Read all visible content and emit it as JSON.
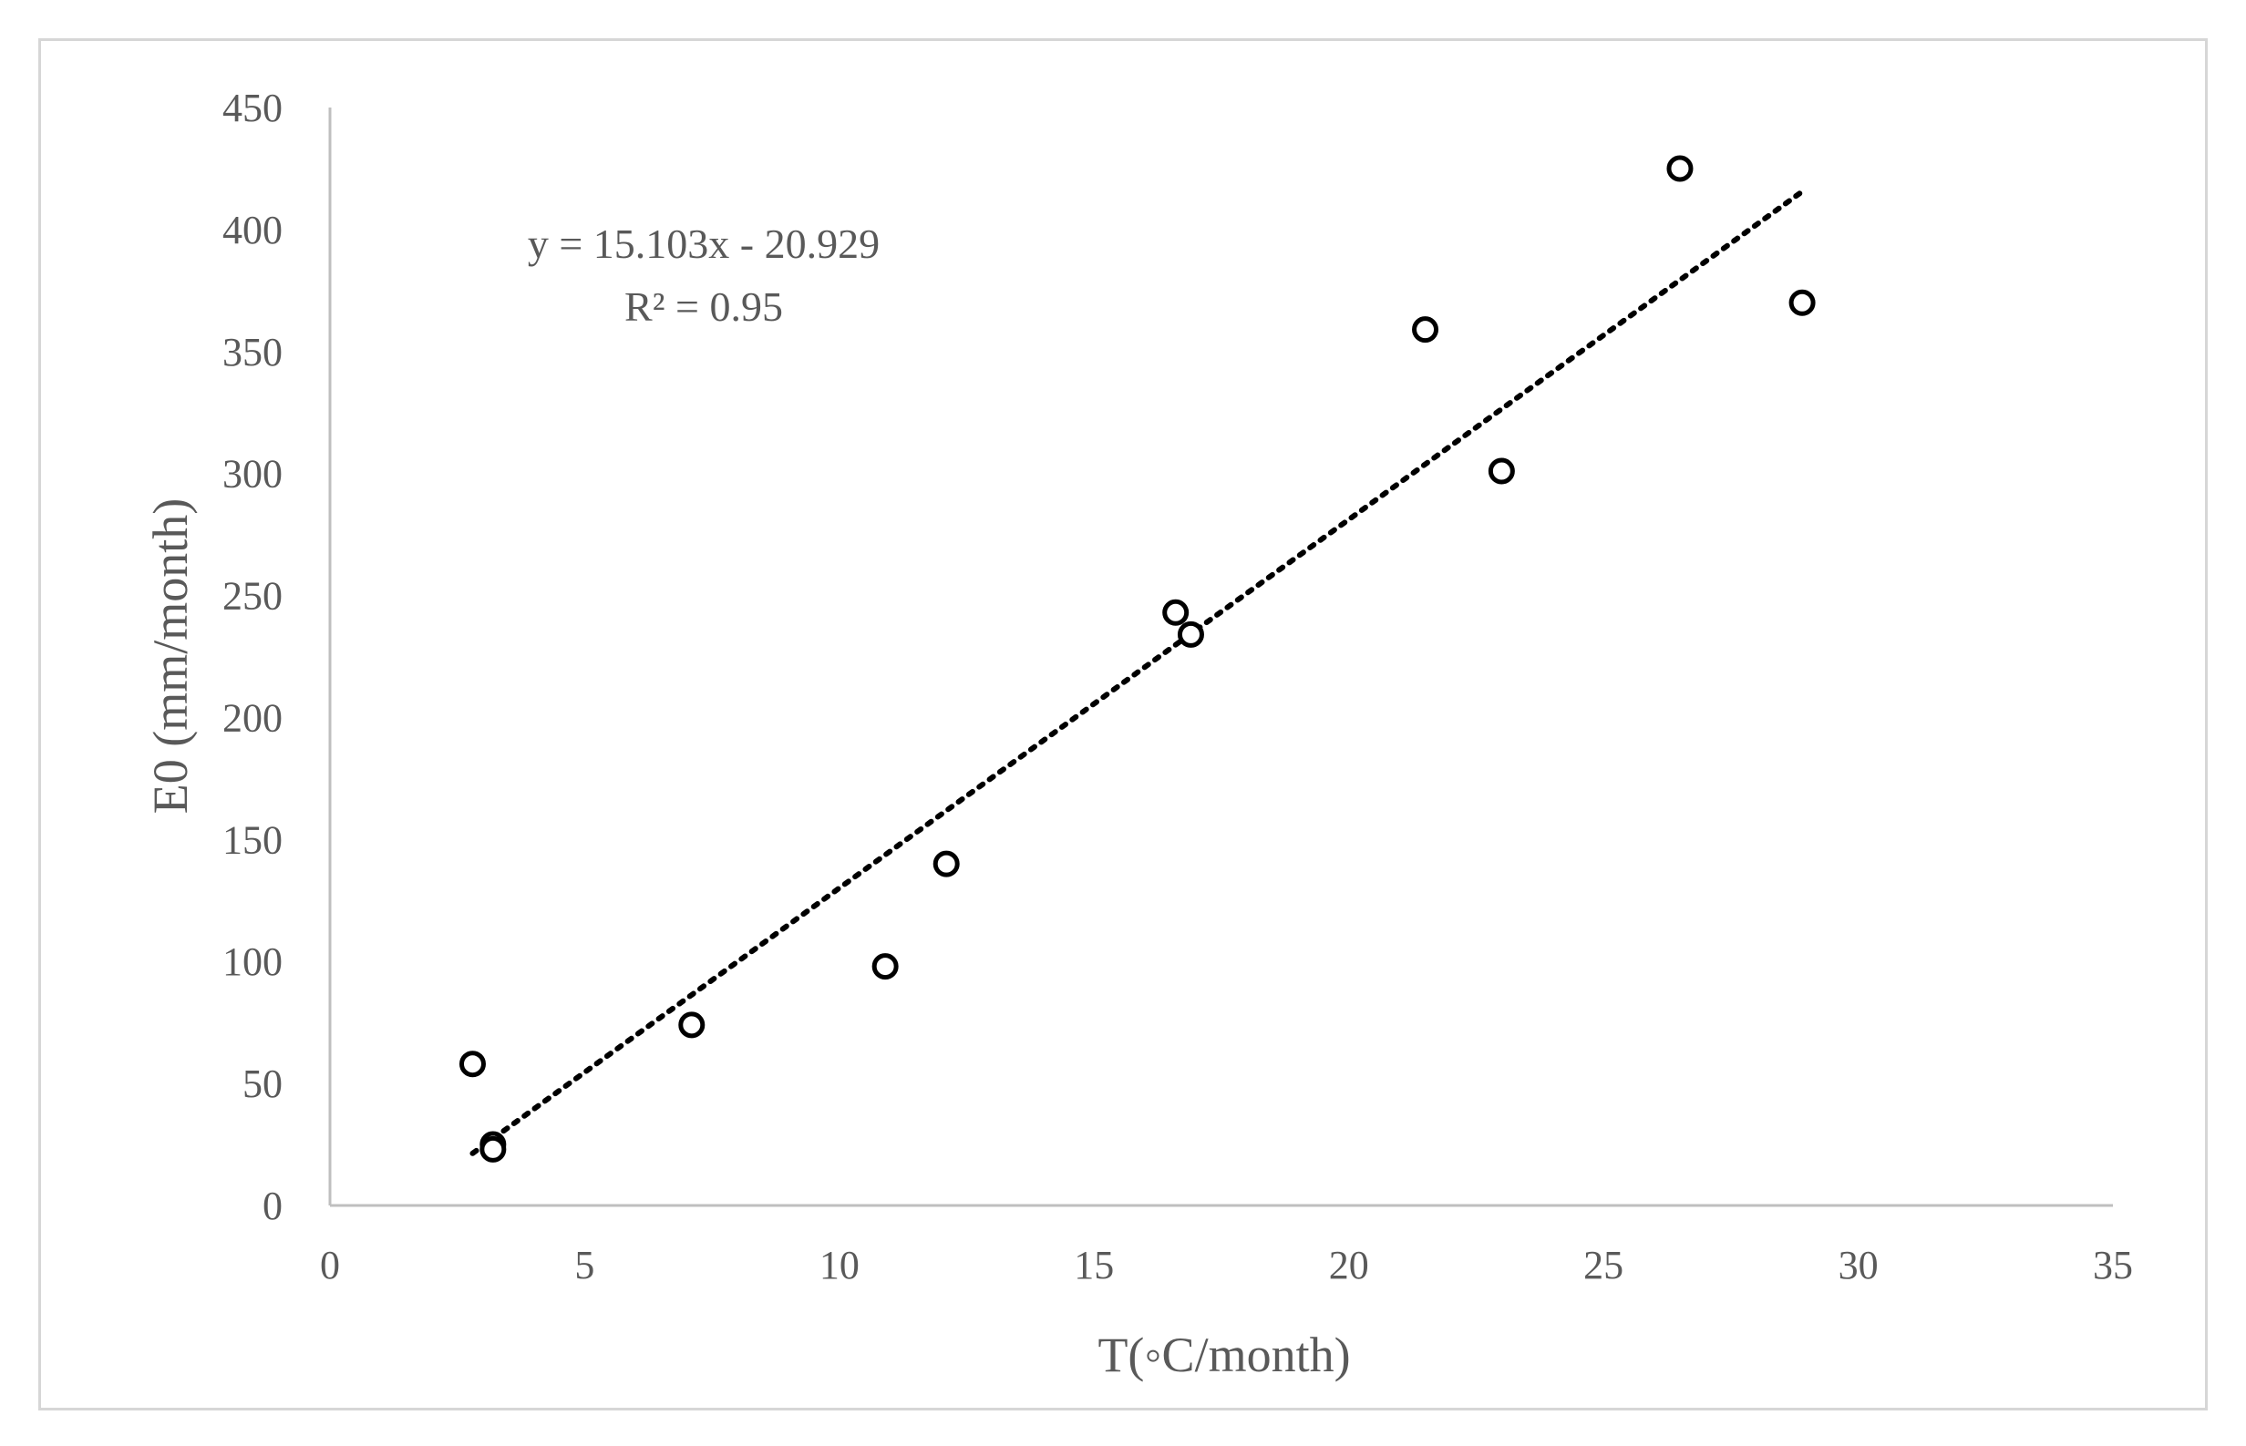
{
  "chart_data": {
    "type": "scatter",
    "xlabel": "T(◦C/month)",
    "ylabel": "E0 (mm/month)",
    "xlim": [
      0,
      35
    ],
    "ylim": [
      0,
      450
    ],
    "x_ticks": [
      "0",
      "5",
      "10",
      "15",
      "20",
      "25",
      "30",
      "35"
    ],
    "y_ticks": [
      "0",
      "50",
      "100",
      "150",
      "200",
      "250",
      "300",
      "350",
      "400",
      "450"
    ],
    "grid": false,
    "legend": "none",
    "series": [
      {
        "points": [
          {
            "x": 2.8,
            "y": 58
          },
          {
            "x": 3.2,
            "y": 25
          },
          {
            "x": 3.2,
            "y": 23
          },
          {
            "x": 7.1,
            "y": 74
          },
          {
            "x": 10.9,
            "y": 98
          },
          {
            "x": 12.1,
            "y": 140
          },
          {
            "x": 16.6,
            "y": 243
          },
          {
            "x": 16.9,
            "y": 234
          },
          {
            "x": 21.5,
            "y": 359
          },
          {
            "x": 23.0,
            "y": 301
          },
          {
            "x": 26.5,
            "y": 425
          },
          {
            "x": 28.9,
            "y": 370
          }
        ]
      }
    ],
    "trendline": {
      "style": "dotted",
      "slope": 15.103,
      "intercept": -20.929,
      "x_range": [
        2.8,
        28.9
      ],
      "equation": "y = 15.103x - 20.929",
      "r2": "R² = 0.95"
    },
    "colors": {
      "marker_stroke": "#000000",
      "trendline": "#000000",
      "axis": "#bfbfbf",
      "text": "#595959",
      "frame": "#d6d6d6"
    }
  }
}
